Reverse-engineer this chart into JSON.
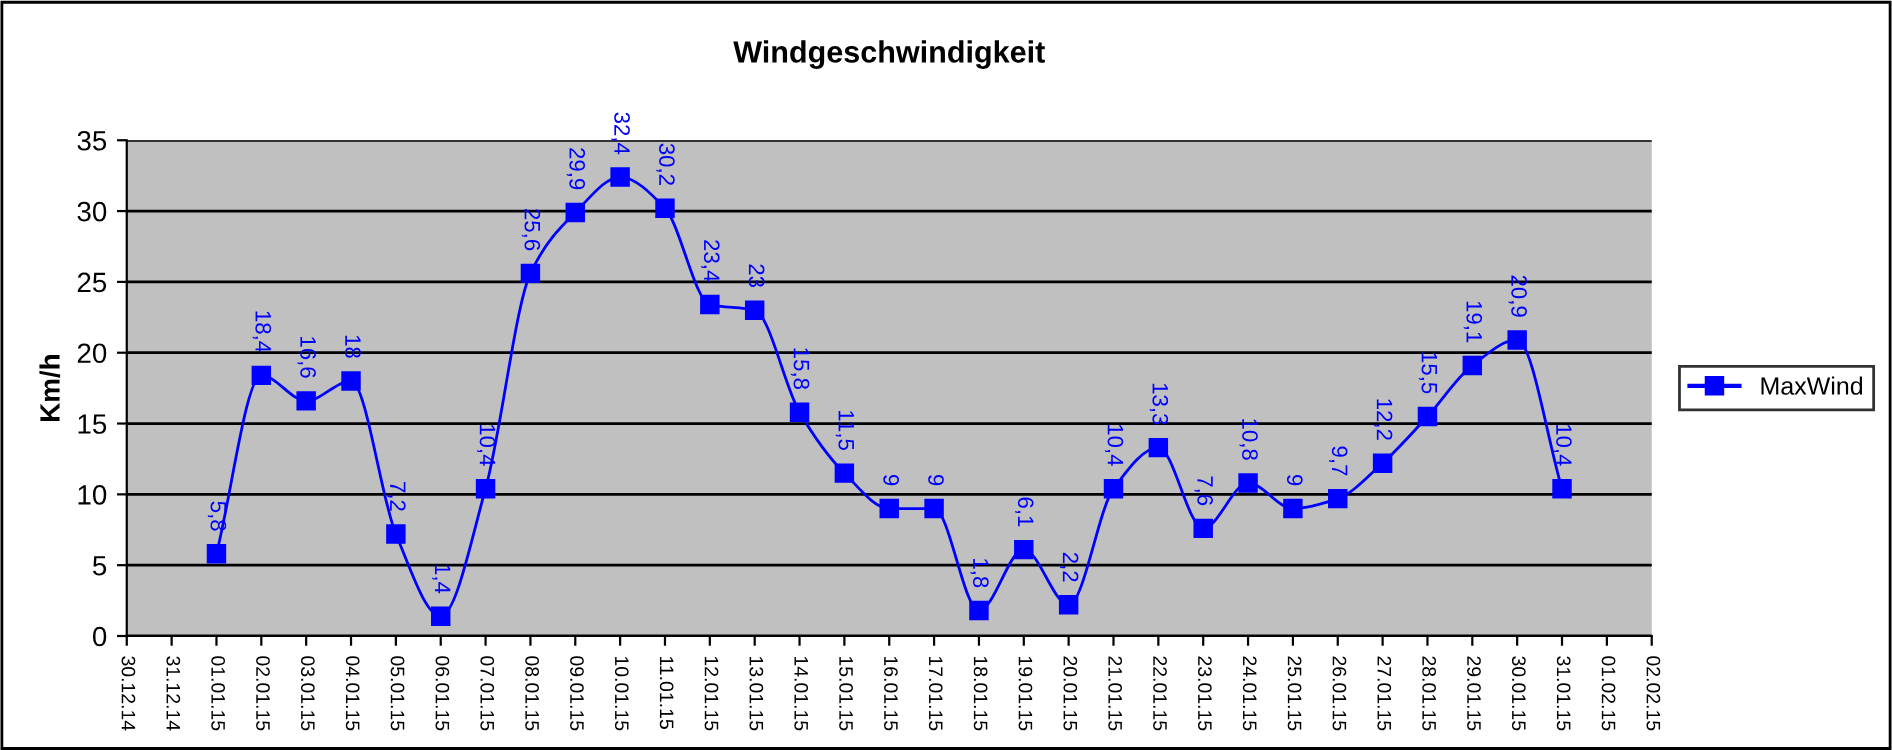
{
  "chart_data": {
    "type": "line",
    "title": "Windgeschwindigkeit",
    "ylabel": "Km/h",
    "categories": [
      "30.12.14",
      "31.12.14",
      "01.01.15",
      "02.01.15",
      "03.01.15",
      "04.01.15",
      "05.01.15",
      "06.01.15",
      "07.01.15",
      "08.01.15",
      "09.01.15",
      "10.01.15",
      "11.01.15",
      "12.01.15",
      "13.01.15",
      "14.01.15",
      "15.01.15",
      "16.01.15",
      "17.01.15",
      "18.01.15",
      "19.01.15",
      "20.01.15",
      "21.01.15",
      "22.01.15",
      "23.01.15",
      "24.01.15",
      "25.01.15",
      "26.01.15",
      "27.01.15",
      "28.01.15",
      "29.01.15",
      "30.01.15",
      "31.01.15",
      "01.02.15",
      "02.02.15"
    ],
    "series": [
      {
        "name": "MaxWind",
        "color": "#0000ff",
        "values": [
          null,
          null,
          5.8,
          18.4,
          16.6,
          18,
          7.2,
          1.4,
          10.4,
          25.6,
          29.9,
          32.4,
          30.2,
          23.4,
          23,
          15.8,
          11.5,
          9,
          9,
          1.8,
          6.1,
          2.2,
          10.4,
          13.3,
          7.6,
          10.8,
          9,
          9.7,
          12.2,
          15.5,
          19.1,
          20.9,
          10.4,
          null,
          null
        ],
        "value_labels": [
          null,
          null,
          "5,8",
          "18,4",
          "16,6",
          "18",
          "7,2",
          "1,4",
          "10,4",
          "25,6",
          "29,9",
          "32,4",
          "30,2",
          "23,4",
          "23",
          "15,8",
          "11,5",
          "9",
          "9",
          "1,8",
          "6,1",
          "2,2",
          "10,4",
          "13,3",
          "7,6",
          "10,8",
          "9",
          "9,7",
          "12,2",
          "15,5",
          "19,1",
          "20,9",
          "10,4",
          null,
          null
        ]
      }
    ],
    "ylim": [
      0,
      35
    ],
    "yticks": [
      0,
      5,
      10,
      15,
      20,
      25,
      30,
      35
    ],
    "grid": "y",
    "legend": "right",
    "marker": "square",
    "line_style": "solid"
  }
}
